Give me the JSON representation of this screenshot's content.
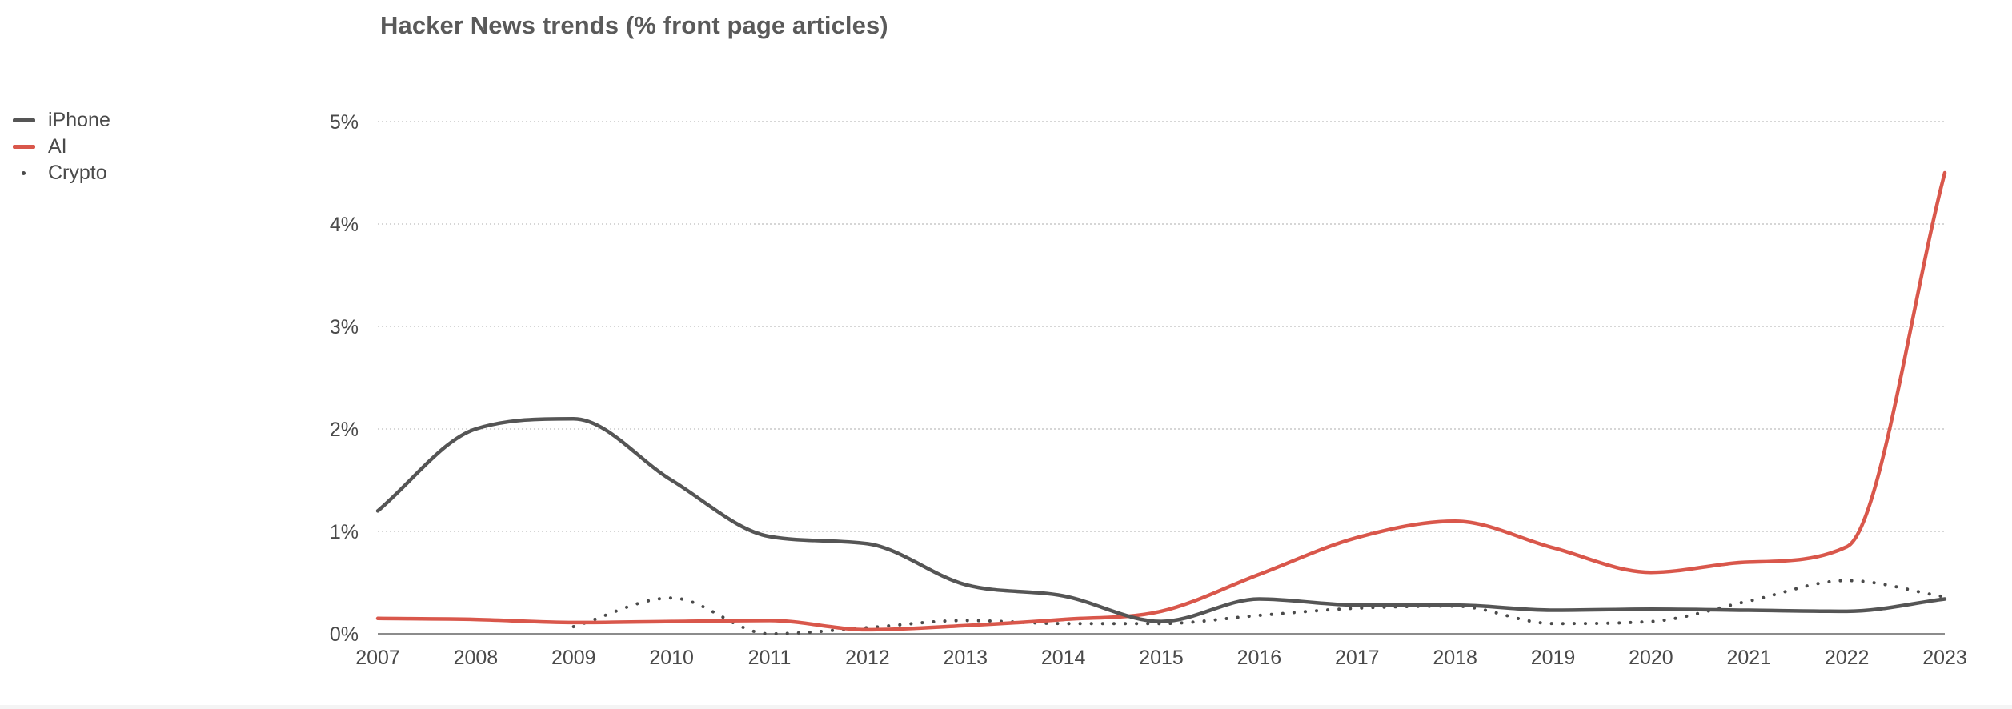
{
  "chart_data": {
    "type": "line",
    "title": "Hacker News trends (% front page articles)",
    "xlabel": "",
    "ylabel": "",
    "x": [
      2007,
      2008,
      2009,
      2010,
      2011,
      2012,
      2013,
      2014,
      2015,
      2016,
      2017,
      2018,
      2019,
      2020,
      2021,
      2022,
      2023
    ],
    "x_tick_labels": [
      "2007",
      "2008",
      "2009",
      "2010",
      "2011",
      "2012",
      "2013",
      "2014",
      "2015",
      "2016",
      "2017",
      "2018",
      "2019",
      "2020",
      "2021",
      "2022",
      "2023"
    ],
    "ylim": [
      0,
      5
    ],
    "y_ticks": [
      0,
      1,
      2,
      3,
      4,
      5
    ],
    "y_tick_labels": [
      "0%",
      "1%",
      "2%",
      "3%",
      "4%",
      "5%"
    ],
    "grid": "horizontal dotted",
    "legend_position": "top-left",
    "series": [
      {
        "name": "iPhone",
        "style": "solid",
        "color": "#555555",
        "x": [
          2007,
          2008,
          2009,
          2010,
          2011,
          2012,
          2013,
          2014,
          2015,
          2016,
          2017,
          2018,
          2019,
          2020,
          2021,
          2022,
          2023
        ],
        "values": [
          1.2,
          2.0,
          2.1,
          1.5,
          0.95,
          0.88,
          0.48,
          0.37,
          0.12,
          0.34,
          0.28,
          0.28,
          0.23,
          0.24,
          0.23,
          0.22,
          0.34
        ]
      },
      {
        "name": "AI",
        "style": "solid",
        "color": "#d9574b",
        "x": [
          2007,
          2008,
          2009,
          2010,
          2011,
          2012,
          2013,
          2014,
          2015,
          2016,
          2017,
          2018,
          2019,
          2020,
          2021,
          2022,
          2023
        ],
        "values": [
          0.15,
          0.14,
          0.11,
          0.12,
          0.13,
          0.04,
          0.08,
          0.14,
          0.22,
          0.58,
          0.94,
          1.1,
          0.84,
          0.6,
          0.7,
          0.85,
          4.5
        ]
      },
      {
        "name": "Crypto",
        "style": "dotted",
        "color": "#4a4a4a",
        "x": [
          2009,
          2010,
          2011,
          2012,
          2013,
          2014,
          2015,
          2016,
          2017,
          2018,
          2019,
          2020,
          2021,
          2022,
          2023
        ],
        "values": [
          0.07,
          0.35,
          0.0,
          0.06,
          0.13,
          0.1,
          0.1,
          0.18,
          0.25,
          0.27,
          0.1,
          0.12,
          0.32,
          0.52,
          0.36
        ]
      }
    ]
  }
}
